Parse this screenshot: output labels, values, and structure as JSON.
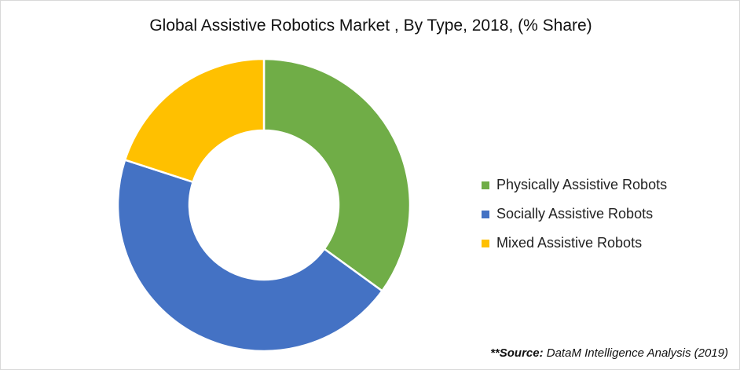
{
  "chart_data": {
    "type": "pie",
    "variant": "donut",
    "title": "Global Assistive Robotics Market , By Type, 2018, (% Share)",
    "categories": [
      "Physically Assistive Robots",
      "Socially Assistive Robots",
      "Mixed Assistive Robots"
    ],
    "values": [
      35,
      45,
      20
    ],
    "unit": "% share",
    "colors": [
      "#70ad47",
      "#4472c4",
      "#ffc000"
    ],
    "start_angle_deg": 0,
    "direction": "clockwise",
    "legend_position": "right",
    "data_labels": false
  },
  "title": "Global Assistive Robotics Market , By Type, 2018, (% Share)",
  "legend": {
    "items": [
      {
        "label": "Physically Assistive Robots",
        "color": "#70ad47"
      },
      {
        "label": "Socially Assistive Robots",
        "color": "#4472c4"
      },
      {
        "label": "Mixed Assistive Robots",
        "color": "#ffc000"
      }
    ]
  },
  "source": {
    "prefix": "**Source:",
    "text": " DataM Intelligence Analysis (2019)"
  }
}
